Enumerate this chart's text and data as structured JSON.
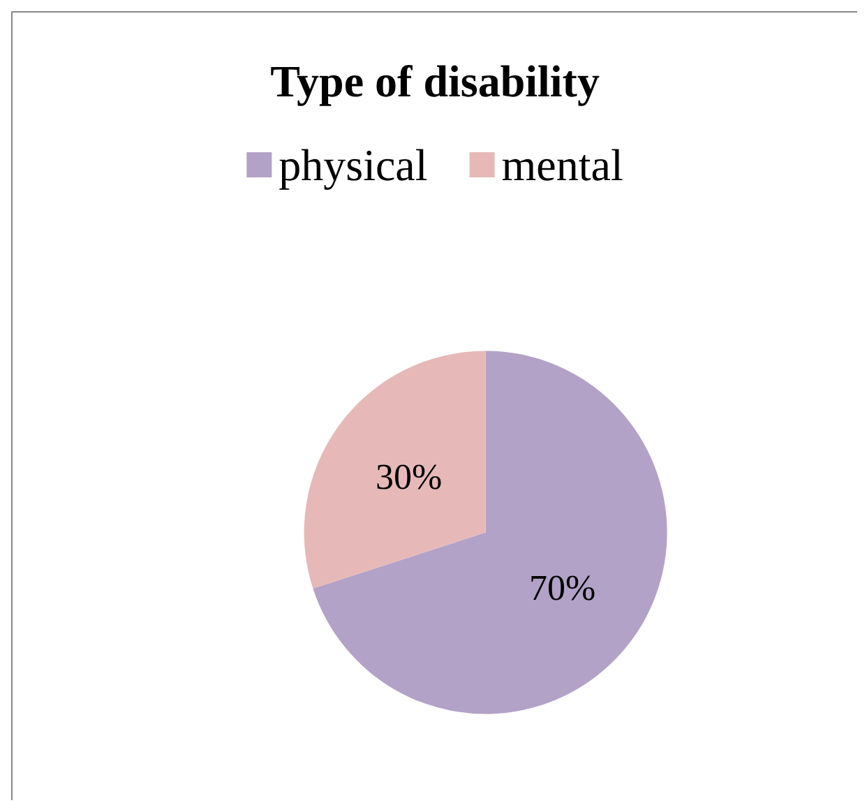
{
  "chart_data": {
    "type": "pie",
    "title": "Type of disability",
    "categories": [
      "physical",
      "mental"
    ],
    "values": [
      70,
      30
    ],
    "colors": [
      "#b3a2c7",
      "#e6b9b8"
    ],
    "value_labels": [
      "70%",
      "30%"
    ],
    "legend": "top"
  }
}
